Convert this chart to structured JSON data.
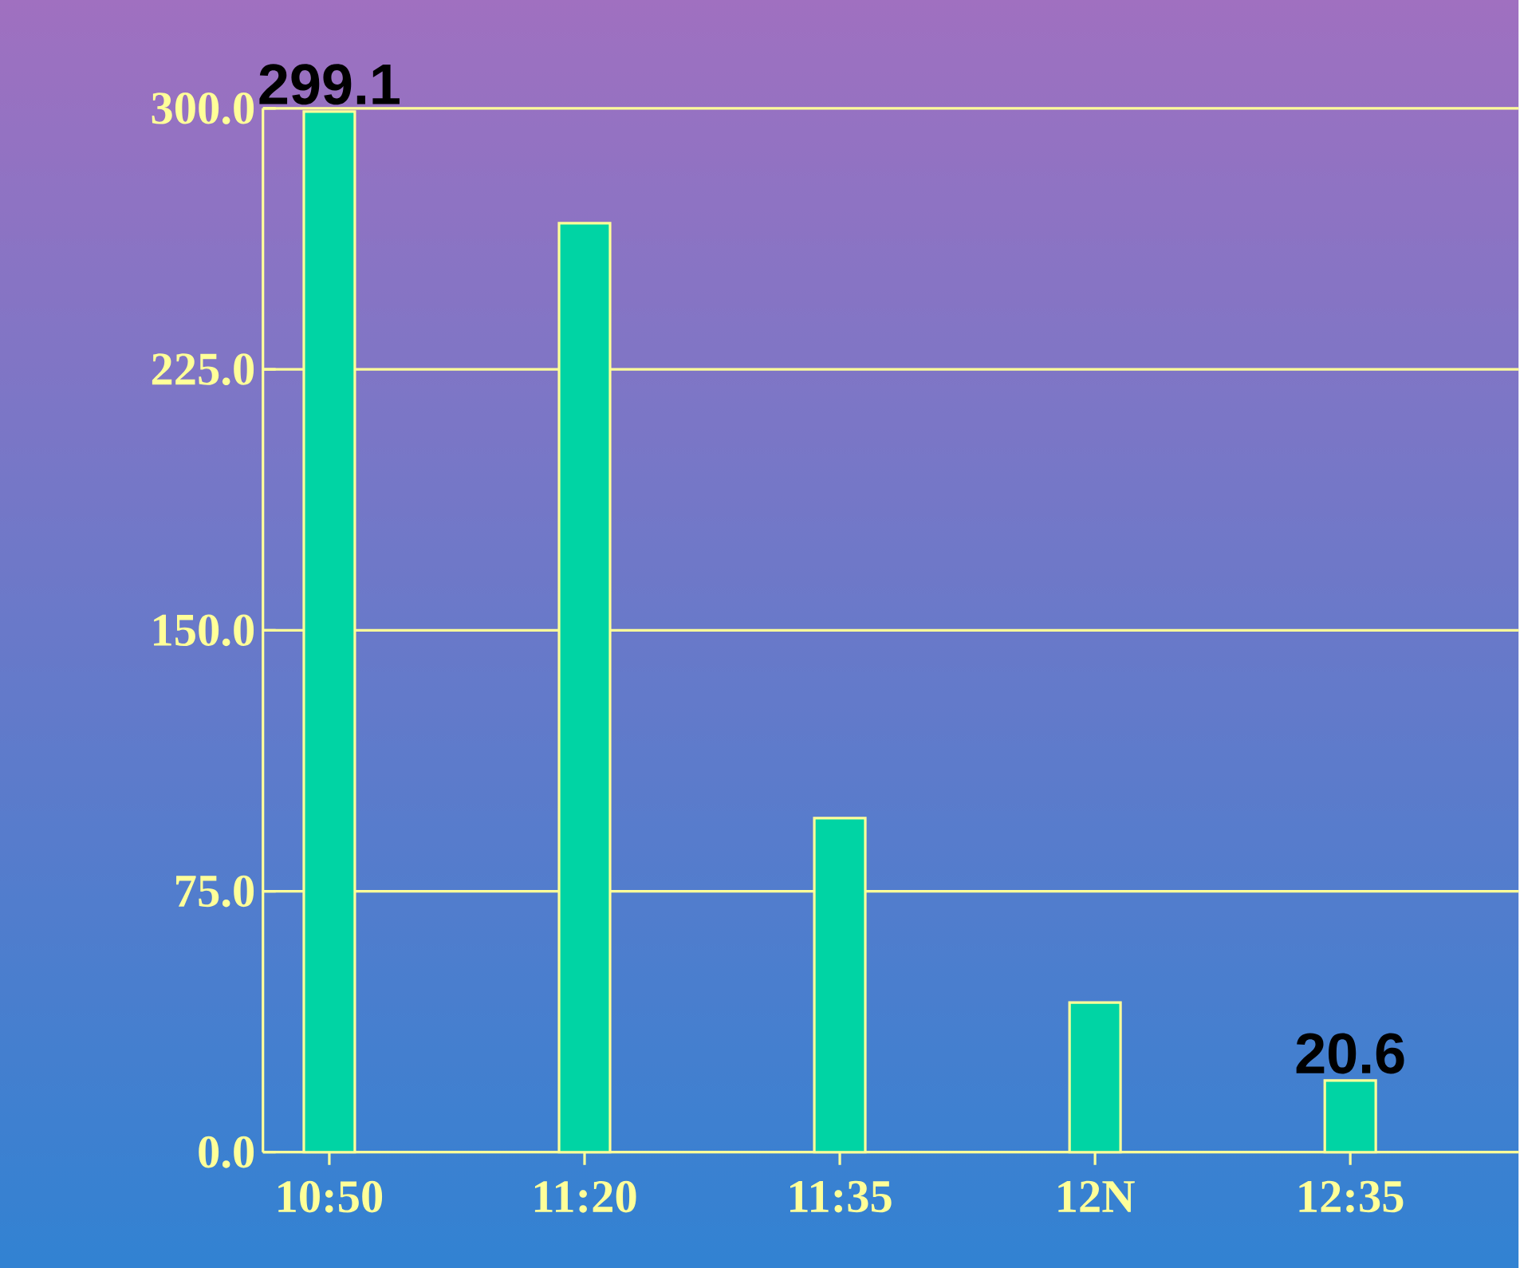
{
  "chart_data": {
    "type": "bar",
    "categories": [
      "10:50",
      "11:20",
      "11:35",
      "12N",
      "12:35"
    ],
    "values": [
      299.1,
      267,
      96,
      43,
      20.6
    ],
    "value_labels": [
      "299.1",
      null,
      null,
      null,
      "20.6"
    ],
    "color": "#00d4a4",
    "ylim": [
      0,
      300
    ],
    "yticks": [
      {
        "value": 0,
        "label": "0.0"
      },
      {
        "value": 75,
        "label": "75.0"
      },
      {
        "value": 150,
        "label": "150.0"
      },
      {
        "value": 225,
        "label": "225.0"
      },
      {
        "value": 300,
        "label": "300.0"
      }
    ],
    "grid": "y"
  }
}
